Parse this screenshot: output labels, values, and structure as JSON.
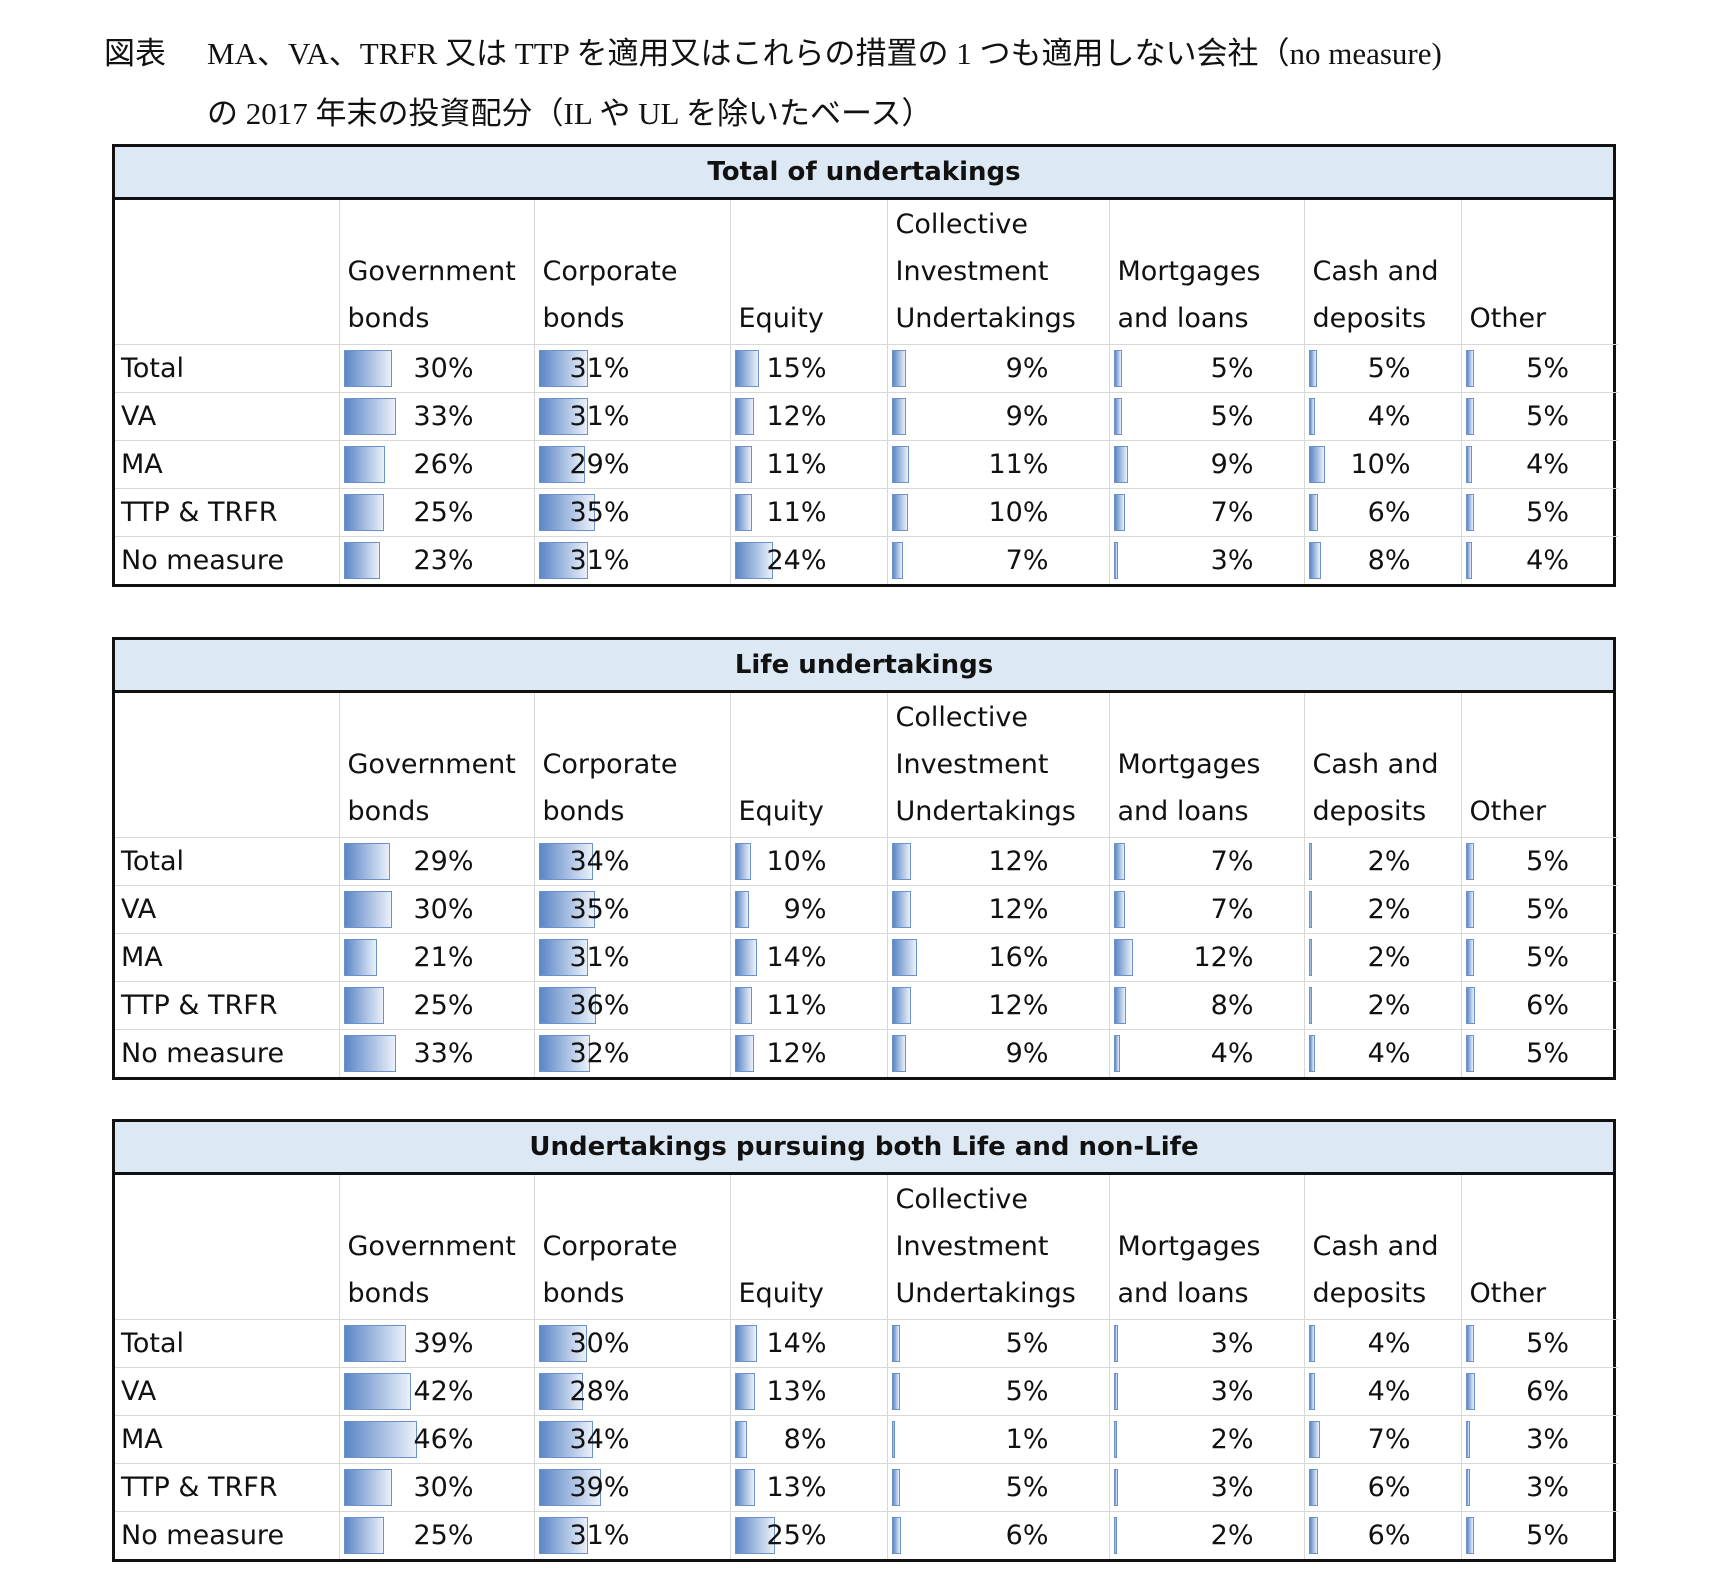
{
  "title": {
    "label": "図表",
    "line1": "MA、VA、TRFR 又は TTP を適用又はこれらの措置の 1 つも適用しない会社（no measure)",
    "line2": "の 2017 年末の投資配分（IL や UL を除いたベース）"
  },
  "colors": {
    "header_band": "#dce9f5",
    "data_bar": "#5b86c6"
  },
  "columns": [
    "Government bonds",
    "Corporate bonds",
    "Equity",
    "Collective Investment Undertakings",
    "Mortgages and loans",
    "Cash and deposits",
    "Other"
  ],
  "row_labels": [
    "Total",
    "VA",
    "MA",
    "TTP & TRFR",
    "No measure"
  ],
  "tables": [
    {
      "title": "Total of undertakings",
      "rows": [
        [
          "30%",
          "31%",
          "15%",
          "9%",
          "5%",
          "5%",
          "5%"
        ],
        [
          "33%",
          "31%",
          "12%",
          "9%",
          "5%",
          "4%",
          "5%"
        ],
        [
          "26%",
          "29%",
          "11%",
          "11%",
          "9%",
          "10%",
          "4%"
        ],
        [
          "25%",
          "35%",
          "11%",
          "10%",
          "7%",
          "6%",
          "5%"
        ],
        [
          "23%",
          "31%",
          "24%",
          "7%",
          "3%",
          "8%",
          "4%"
        ]
      ]
    },
    {
      "title": "Life undertakings",
      "rows": [
        [
          "29%",
          "34%",
          "10%",
          "12%",
          "7%",
          "2%",
          "5%"
        ],
        [
          "30%",
          "35%",
          "9%",
          "12%",
          "7%",
          "2%",
          "5%"
        ],
        [
          "21%",
          "31%",
          "14%",
          "16%",
          "12%",
          "2%",
          "5%"
        ],
        [
          "25%",
          "36%",
          "11%",
          "12%",
          "8%",
          "2%",
          "6%"
        ],
        [
          "33%",
          "32%",
          "12%",
          "9%",
          "4%",
          "4%",
          "5%"
        ]
      ]
    },
    {
      "title": "Undertakings pursuing both Life and non-Life",
      "rows": [
        [
          "39%",
          "30%",
          "14%",
          "5%",
          "3%",
          "4%",
          "5%"
        ],
        [
          "42%",
          "28%",
          "13%",
          "5%",
          "3%",
          "4%",
          "6%"
        ],
        [
          "46%",
          "34%",
          "8%",
          "1%",
          "2%",
          "7%",
          "3%"
        ],
        [
          "30%",
          "39%",
          "13%",
          "5%",
          "3%",
          "6%",
          "3%"
        ],
        [
          "25%",
          "31%",
          "25%",
          "6%",
          "2%",
          "6%",
          "5%"
        ]
      ]
    }
  ]
}
